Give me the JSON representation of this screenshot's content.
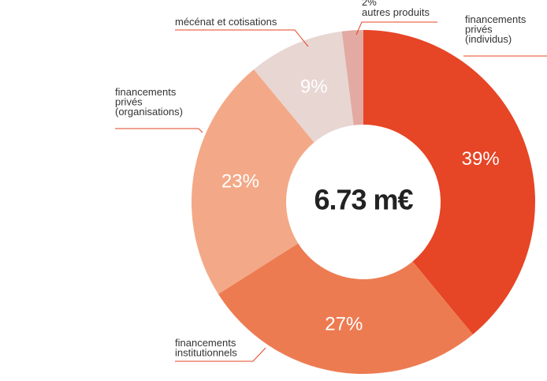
{
  "chart_data": {
    "type": "pie",
    "variant": "donut",
    "center_label": "6.73 m€",
    "slices": [
      {
        "label_lines": [
          "financements",
          "privés",
          "(individus)"
        ],
        "value": 39,
        "value_label": "39%",
        "color": "#e64526"
      },
      {
        "label_lines": [
          "financements",
          "institutionnels"
        ],
        "value": 27,
        "value_label": "27%",
        "color": "#ed7b52"
      },
      {
        "label_lines": [
          "financements",
          "privés",
          "(organisations)"
        ],
        "value": 23,
        "value_label": "23%",
        "color": "#f3a987"
      },
      {
        "label_lines": [
          "mécénat et cotisations"
        ],
        "value": 9,
        "value_label": "9%",
        "color": "#e8d6d2"
      },
      {
        "label_lines": [
          "autres produits"
        ],
        "value": 2,
        "value_label": "2%",
        "color": "#e2aaa2"
      }
    ],
    "leader_line_color": "#e64526"
  }
}
